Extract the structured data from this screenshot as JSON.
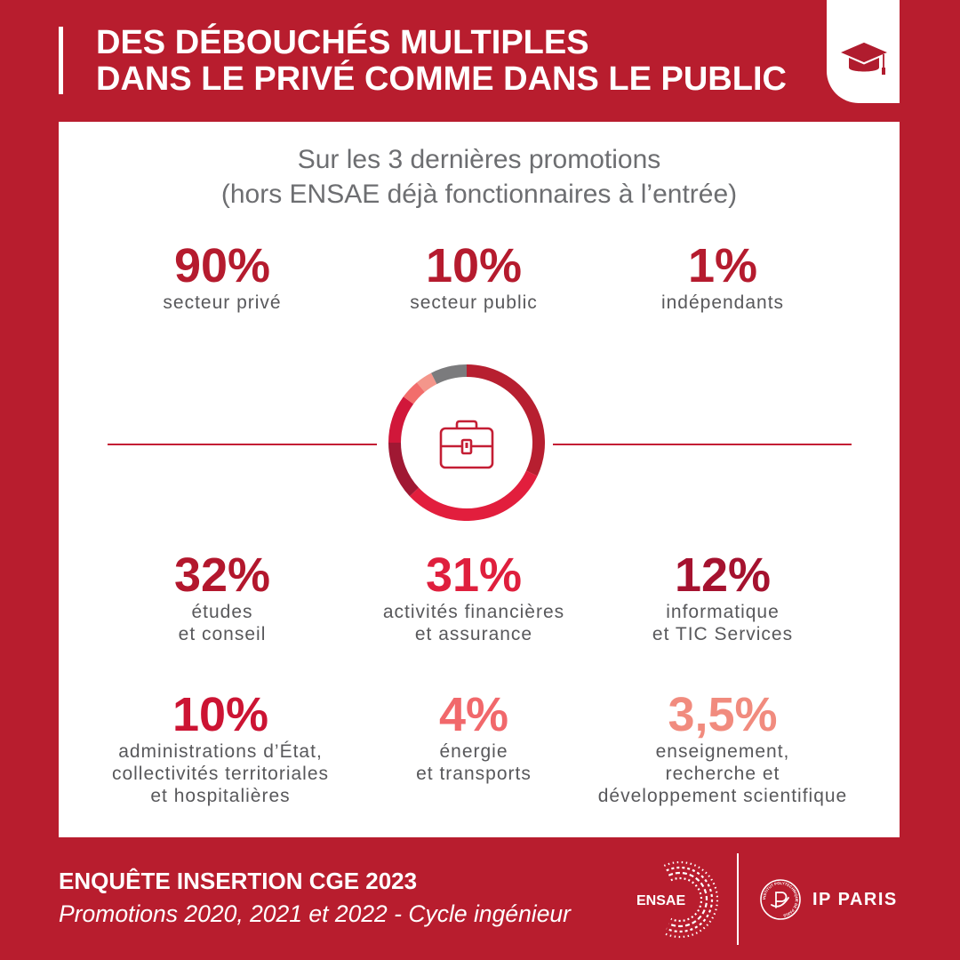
{
  "header": {
    "title_line1": "DES DÉBOUCHÉS MULTIPLES",
    "title_line2": "DANS LE PRIVÉ COMME DANS LE PUBLIC",
    "badge_icon": "graduation-cap-icon"
  },
  "intro": {
    "line1": "Sur les 3 dernières promotions",
    "line2": "(hors ENSAE déjà fonctionnaires à l’entrée)"
  },
  "sectors": [
    {
      "value": "90%",
      "label": "secteur privé",
      "color": "#b51b2e"
    },
    {
      "value": "10%",
      "label": "secteur public",
      "color": "#b51b2e"
    },
    {
      "value": "1%",
      "label": "indépendants",
      "color": "#b51b2e"
    }
  ],
  "center_icon": "briefcase-icon",
  "activities": [
    {
      "value": "32%",
      "label_lines": [
        "études",
        "et conseil"
      ],
      "color": "#b3172d"
    },
    {
      "value": "31%",
      "label_lines": [
        "activités financières",
        "et assurance"
      ],
      "color": "#df1f3d"
    },
    {
      "value": "12%",
      "label_lines": [
        "informatique",
        "et TIC Services"
      ],
      "color": "#a5122f"
    },
    {
      "value": "10%",
      "label_lines": [
        "administrations d’État,",
        "collectivités territoriales",
        "et hospitalières"
      ],
      "color": "#cc1433"
    },
    {
      "value": "4%",
      "label_lines": [
        "énergie",
        "et transports"
      ],
      "color": "#f1686b"
    },
    {
      "value": "3,5%",
      "label_lines": [
        "enseignement,",
        "recherche et",
        "développement scientifique"
      ],
      "color": "#f18b7e"
    }
  ],
  "chart_data": {
    "type": "pie",
    "donut": true,
    "values": [
      32,
      31,
      12,
      10,
      4,
      3.5,
      7.5
    ],
    "colors": [
      "#b71f30",
      "#e21e3d",
      "#a01833",
      "#d1173a",
      "#f26d6b",
      "#f4968b",
      "#7b7b7d"
    ]
  },
  "footer": {
    "survey_title": "ENQUÊTE INSERTION CGE 2023",
    "cohorts": "Promotions 2020, 2021 et 2022 - Cycle ingénieur",
    "ensae_logo": "ENSAE",
    "ip_paris_emblem": "INSTITUT POLYTECHNIQUE DE PARIS",
    "ip_paris_logo": "IP PARIS"
  },
  "colors": {
    "background": "#b81d2e",
    "panel": "#ffffff",
    "title": "#ffffff",
    "intro_text": "#6d6e71",
    "label_text": "#58585b",
    "accent": "#c41e34"
  }
}
